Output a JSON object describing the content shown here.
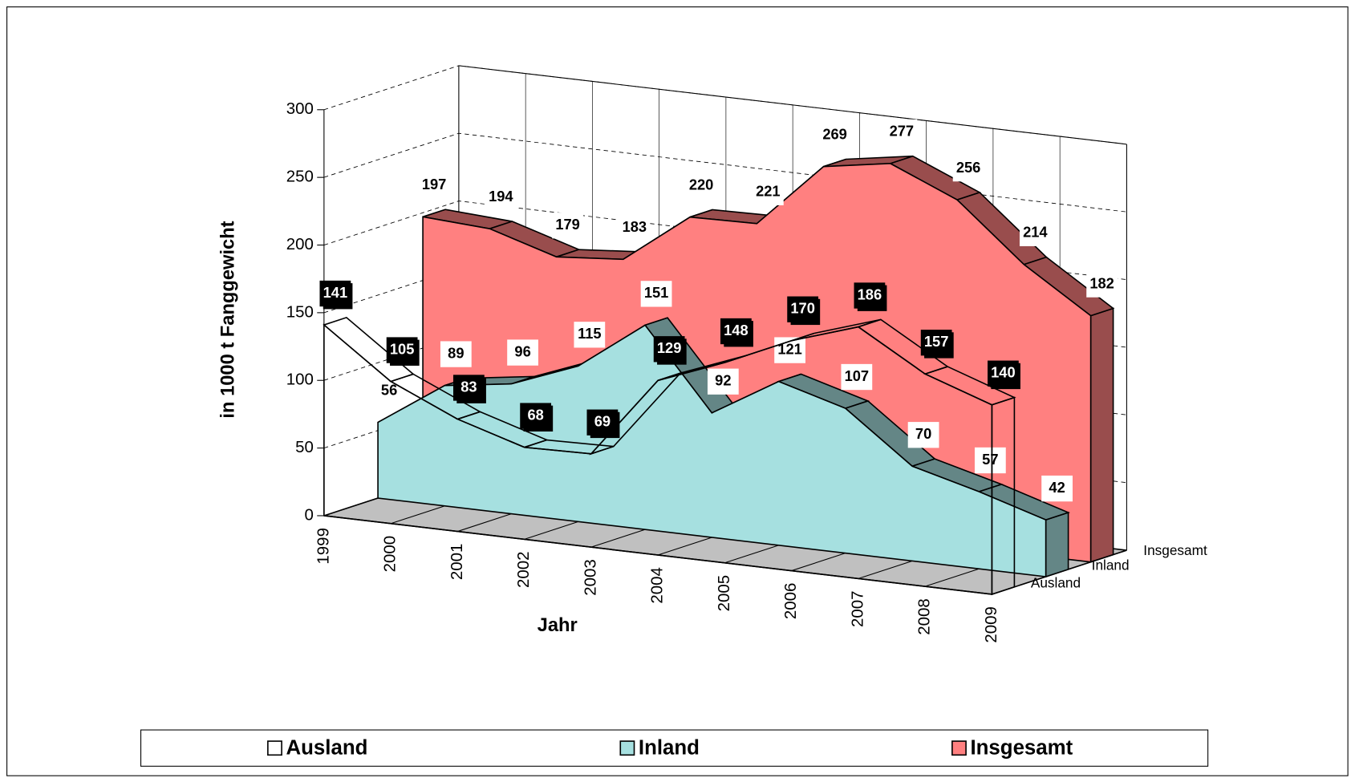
{
  "chart_data": {
    "type": "area3d",
    "x_label": "Jahr",
    "y_label": "in 1000 t Fanggewicht",
    "categories": [
      "1999",
      "2000",
      "2001",
      "2002",
      "2003",
      "2004",
      "2005",
      "2006",
      "2007",
      "2008",
      "2009"
    ],
    "ylim": [
      0,
      300
    ],
    "yticks": [
      0,
      50,
      100,
      150,
      200,
      250,
      300
    ],
    "grid": true,
    "series": [
      {
        "name": "Ausland",
        "color": "#ffffff",
        "values": [
          141,
          105,
          83,
          68,
          69,
          129,
          148,
          170,
          186,
          157,
          140
        ]
      },
      {
        "name": "Inland",
        "color": "#a6e0e0",
        "values": [
          56,
          89,
          96,
          115,
          151,
          92,
          121,
          107,
          70,
          57,
          42
        ]
      },
      {
        "name": "Insgesamt",
        "color": "#ff8080",
        "values": [
          197,
          194,
          179,
          183,
          220,
          221,
          269,
          277,
          256,
          214,
          182
        ]
      }
    ]
  }
}
